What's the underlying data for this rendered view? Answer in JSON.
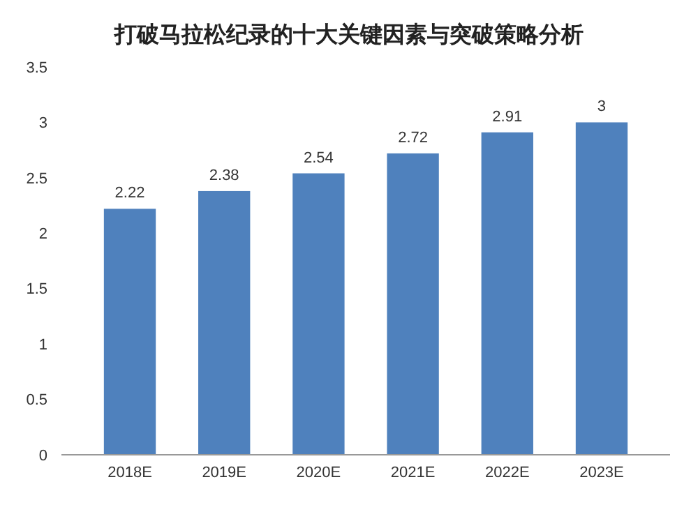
{
  "chart_data": {
    "type": "bar",
    "title": "打破马拉松纪录的十大关键因素与突破策略分析",
    "categories": [
      "2018E",
      "2019E",
      "2020E",
      "2021E",
      "2022E",
      "2023E"
    ],
    "values": [
      2.22,
      2.38,
      2.54,
      2.72,
      2.91,
      3
    ],
    "value_labels": [
      "2.22",
      "2.38",
      "2.54",
      "2.72",
      "2.91",
      "3"
    ],
    "color": "#4f81bd",
    "ylim": [
      0,
      3.5
    ],
    "yticks": [
      0,
      0.5,
      1,
      1.5,
      2,
      2.5,
      3,
      3.5
    ]
  }
}
